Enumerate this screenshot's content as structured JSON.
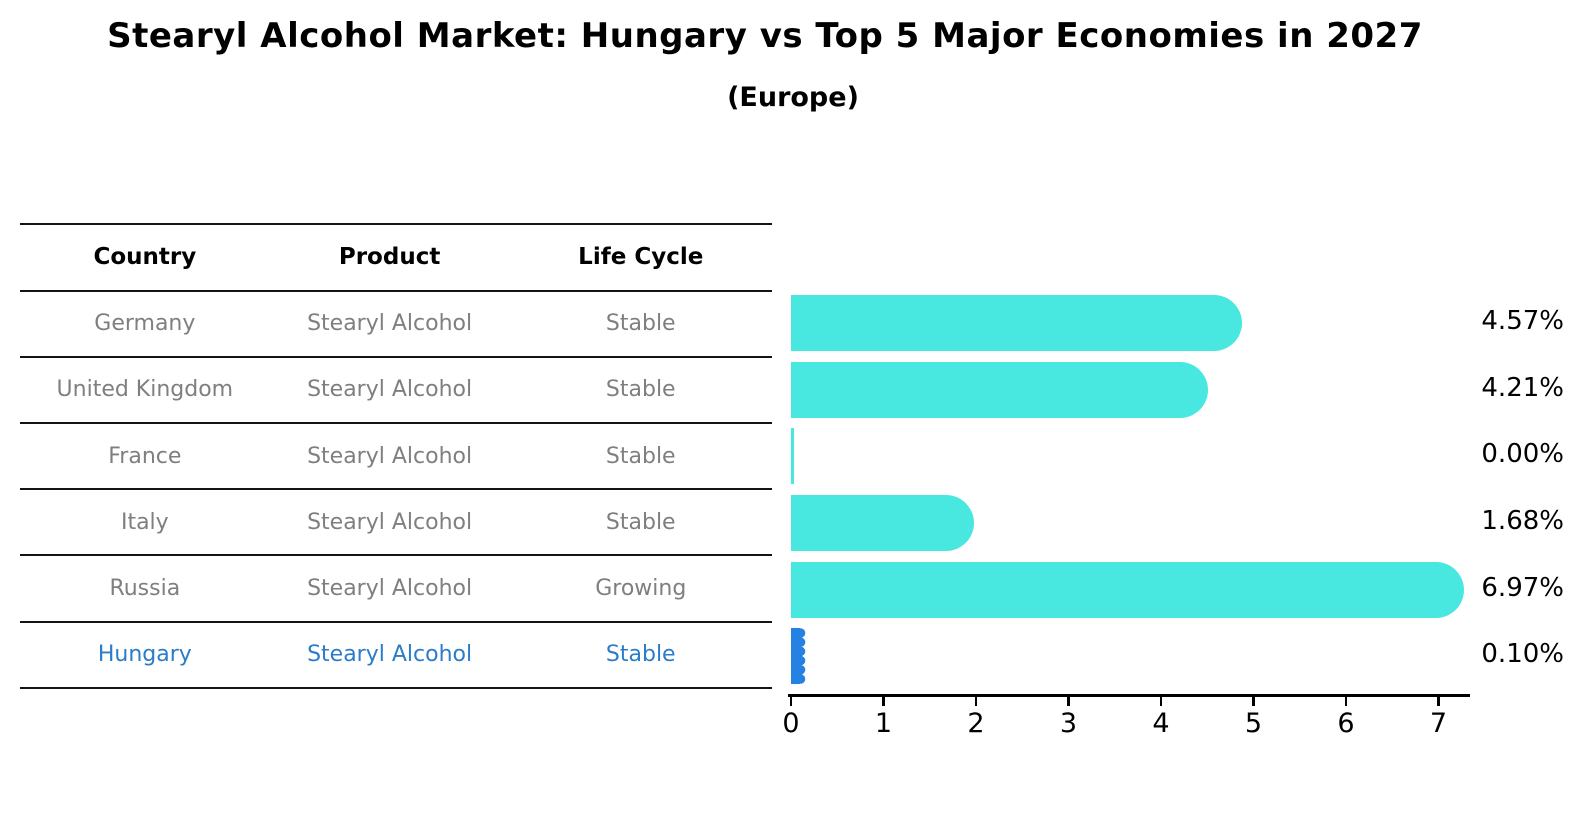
{
  "title": "Stearyl Alcohol Market: Hungary vs Top 5 Major Economies in 2027",
  "subtitle": "(Europe)",
  "colors": {
    "bar": "#48e8e0",
    "highlight_bar": "#2581e2",
    "highlight_text": "#2b7cc9",
    "table_text": "#7f7f7f",
    "header_text": "#000000",
    "axis": "#000000"
  },
  "table": {
    "headers": [
      "Country",
      "Product",
      "Life Cycle"
    ],
    "rows": [
      {
        "country": "Germany",
        "product": "Stearyl Alcohol",
        "life_cycle": "Stable",
        "highlighted": false
      },
      {
        "country": "United Kingdom",
        "product": "Stearyl Alcohol",
        "life_cycle": "Stable",
        "highlighted": false
      },
      {
        "country": "France",
        "product": "Stearyl Alcohol",
        "life_cycle": "Stable",
        "highlighted": false
      },
      {
        "country": "Italy",
        "product": "Stearyl Alcohol",
        "life_cycle": "Stable",
        "highlighted": false
      },
      {
        "country": "Russia",
        "product": "Stearyl Alcohol",
        "life_cycle": "Growing",
        "highlighted": false
      },
      {
        "country": "Hungary",
        "product": "Stearyl Alcohol",
        "life_cycle": "Stable",
        "highlighted": true
      }
    ]
  },
  "chart_data": {
    "type": "bar",
    "orientation": "horizontal",
    "title": "Stearyl Alcohol Market: Hungary vs Top 5 Major Economies in 2027 (Europe)",
    "categories": [
      "Germany",
      "United Kingdom",
      "France",
      "Italy",
      "Russia",
      "Hungary"
    ],
    "values": [
      4.57,
      4.21,
      0.0,
      1.68,
      6.97,
      0.1
    ],
    "value_labels": [
      "4.57%",
      "4.21%",
      "0.00%",
      "1.68%",
      "6.97%",
      "0.10%"
    ],
    "highlighted_index": 5,
    "x_ticks": [
      0,
      1,
      2,
      3,
      4,
      5,
      6,
      7
    ],
    "xlim": [
      0,
      7.35
    ],
    "xlabel": "",
    "ylabel": "",
    "grid": false,
    "legend": false,
    "unit": "percent"
  }
}
